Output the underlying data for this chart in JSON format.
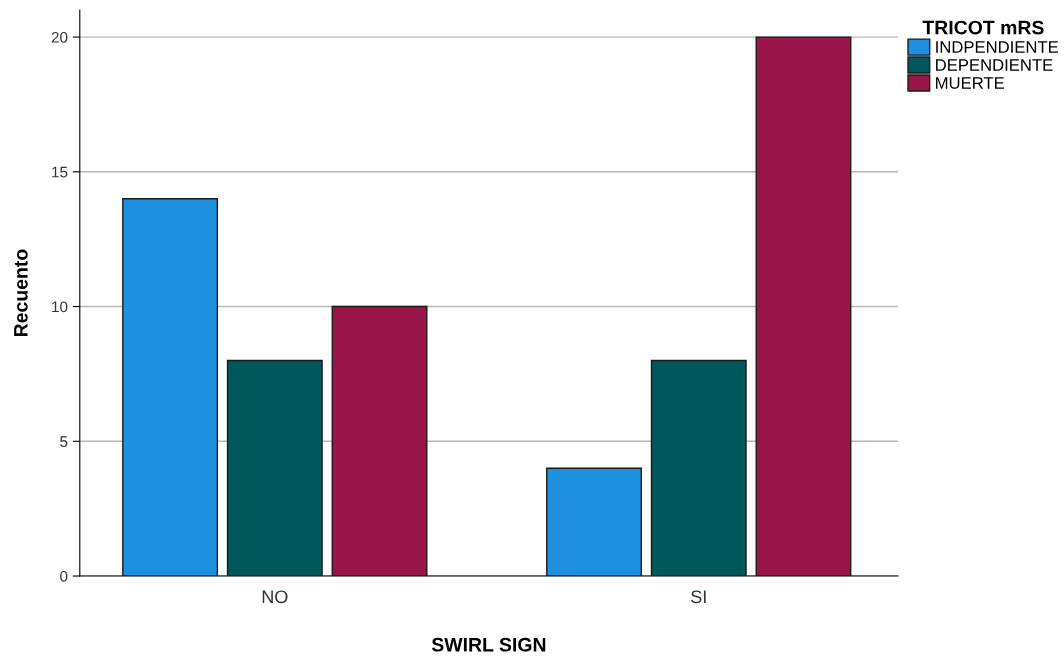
{
  "chart_data": {
    "type": "bar",
    "xlabel": "SWIRL SIGN",
    "ylabel": "Recuento",
    "legend_title": "TRICOT mRS",
    "categories": [
      "NO",
      "SI"
    ],
    "series": [
      {
        "name": "INDPENDIENTE",
        "color": "#1f8fe0",
        "values": [
          14,
          4
        ]
      },
      {
        "name": "DEPENDIENTE",
        "color": "#00585a",
        "values": [
          8,
          8
        ]
      },
      {
        "name": "MUERTE",
        "color": "#9a1549",
        "values": [
          10,
          20
        ]
      }
    ],
    "ylim": [
      0,
      21
    ],
    "yticks": [
      0,
      5,
      10,
      15,
      20
    ],
    "grid": "y",
    "legend": "top right"
  }
}
